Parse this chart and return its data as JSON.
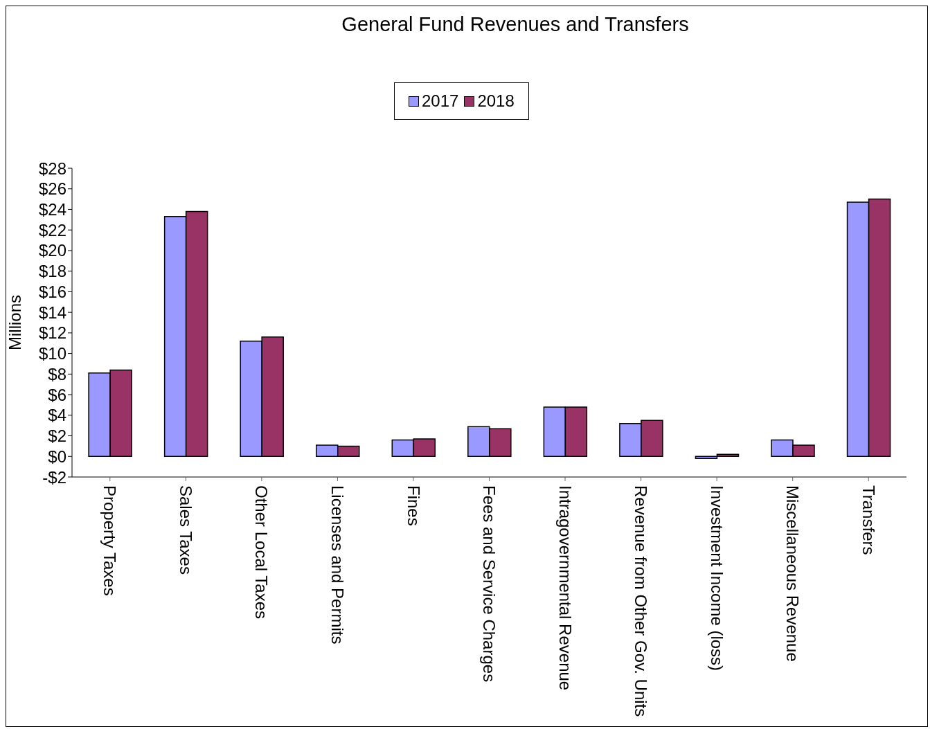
{
  "chart_data": {
    "type": "bar",
    "title": "General Fund Revenues and Transfers",
    "ylabel": "Millions",
    "categories": [
      "Property Taxes",
      "Sales Taxes",
      "Other Local Taxes",
      "Licenses and Permits",
      "Fines",
      "Fees and Service Charges",
      "Intragovernmental Revenue",
      "Revenue from Other Gov. Units",
      "Investment Income (loss)",
      "Miscellaneous Revenue",
      "Transfers"
    ],
    "series": [
      {
        "name": "2017",
        "color": "#9999ff",
        "values": [
          8.1,
          23.3,
          11.2,
          1.1,
          1.6,
          2.9,
          4.8,
          3.2,
          -0.2,
          1.6,
          24.7
        ]
      },
      {
        "name": "2018",
        "color": "#993366",
        "values": [
          8.4,
          23.8,
          11.6,
          1.0,
          1.7,
          2.7,
          4.8,
          3.5,
          0.2,
          1.1,
          25.0
        ]
      }
    ],
    "ylim": [
      -2,
      28
    ],
    "yticks": [
      {
        "value": -2,
        "label": "-$2"
      },
      {
        "value": 0,
        "label": "$0"
      },
      {
        "value": 2,
        "label": "$2"
      },
      {
        "value": 4,
        "label": "$4"
      },
      {
        "value": 6,
        "label": "$6"
      },
      {
        "value": 8,
        "label": "$8"
      },
      {
        "value": 10,
        "label": "$10"
      },
      {
        "value": 12,
        "label": "$12"
      },
      {
        "value": 14,
        "label": "$14"
      },
      {
        "value": 16,
        "label": "$16"
      },
      {
        "value": 18,
        "label": "$18"
      },
      {
        "value": 20,
        "label": "$20"
      },
      {
        "value": 22,
        "label": "$22"
      },
      {
        "value": 24,
        "label": "$24"
      },
      {
        "value": 26,
        "label": "$26"
      },
      {
        "value": 28,
        "label": "$28"
      }
    ],
    "grid": false,
    "legend": "top"
  }
}
